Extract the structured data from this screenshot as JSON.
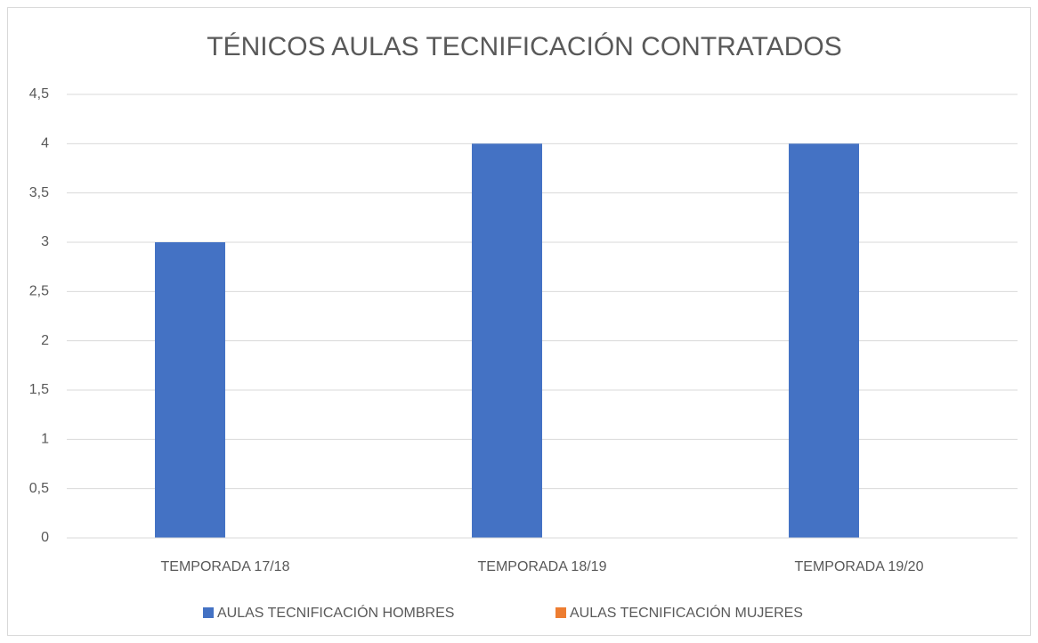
{
  "chart_data": {
    "type": "bar",
    "title": "TÉNICOS AULAS TECNIFICACIÓN CONTRATADOS",
    "categories": [
      "TEMPORADA 17/18",
      "TEMPORADA 18/19",
      "TEMPORADA 19/20"
    ],
    "series": [
      {
        "name": "AULAS TECNIFICACIÓN HOMBRES",
        "color": "#4472c4",
        "values": [
          3,
          4,
          4
        ]
      },
      {
        "name": "AULAS TECNIFICACIÓN MUJERES",
        "color": "#ed7d31",
        "values": [
          0,
          0,
          0
        ]
      }
    ],
    "ylim": [
      0,
      4.5
    ],
    "yticks": [
      0,
      {
        "value": 0.5,
        "label": "0,5"
      },
      1,
      {
        "value": 1.5,
        "label": "1,5"
      },
      2,
      {
        "value": 2.5,
        "label": "2,5"
      },
      3,
      {
        "value": 3.5,
        "label": "3,5"
      },
      4,
      {
        "value": 4.5,
        "label": "4,5"
      }
    ],
    "grid": true,
    "legend": "bottom"
  }
}
